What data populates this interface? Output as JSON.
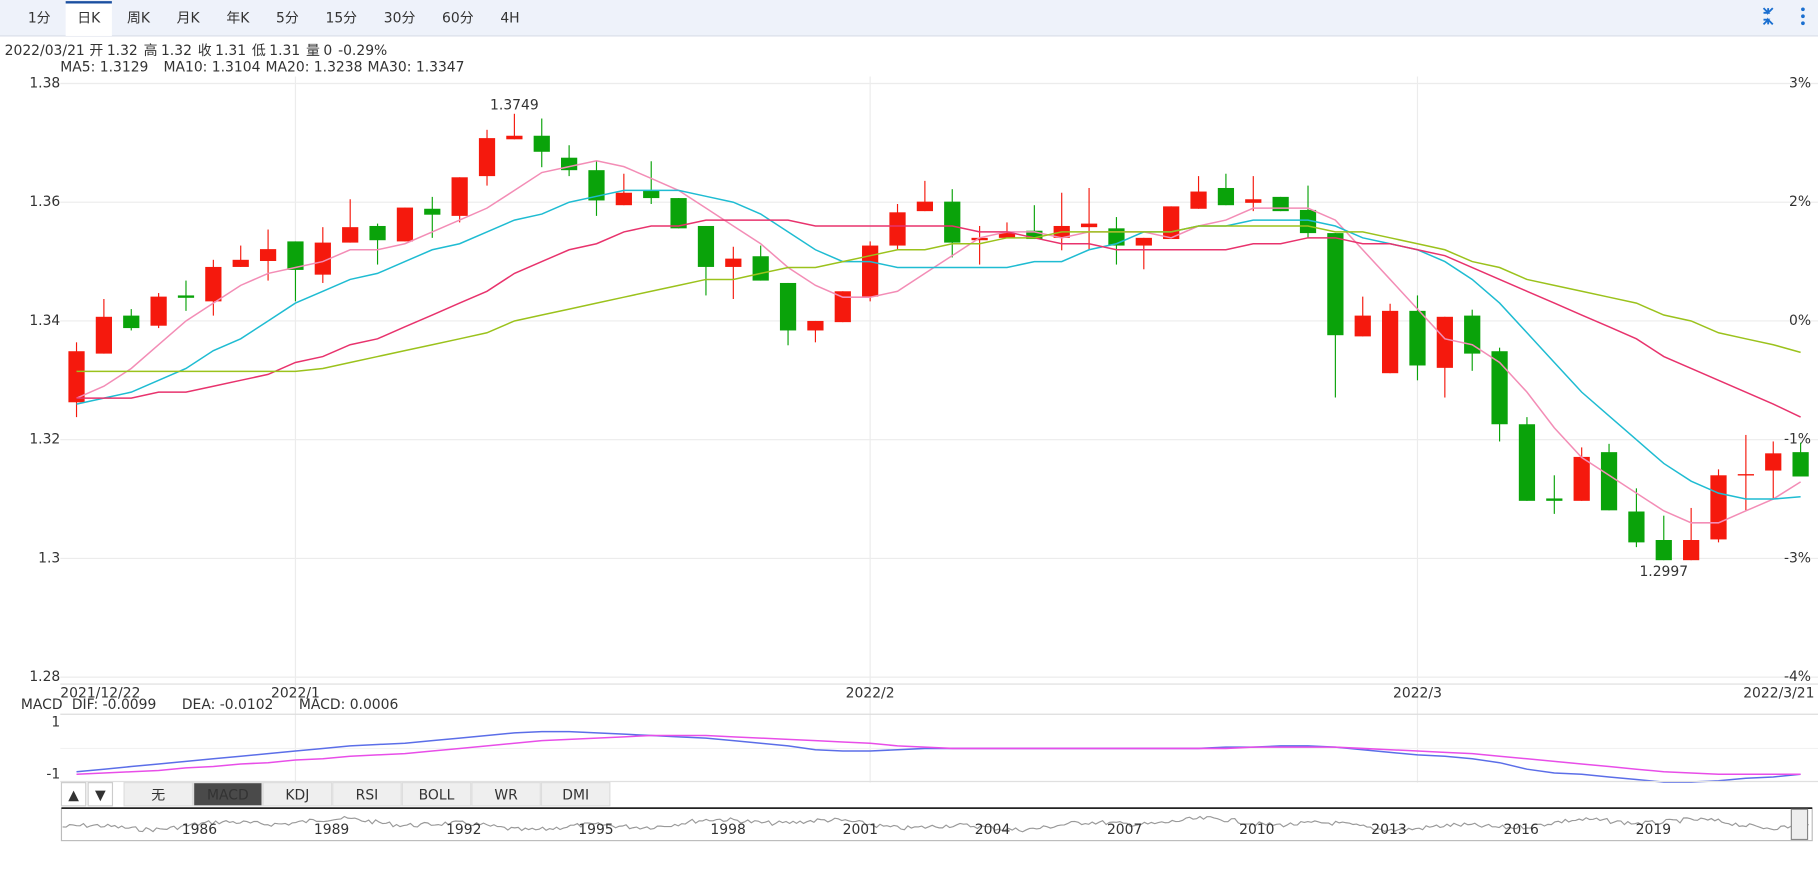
{
  "toolbar": {
    "tabs": [
      "1分",
      "日K",
      "周K",
      "月K",
      "年K",
      "5分",
      "15分",
      "30分",
      "60分",
      "4H"
    ],
    "selected": 1
  },
  "info": {
    "date": "2022/03/21",
    "fields": [
      {
        "label": "开",
        "value": "1.32",
        "color": "#f5190d"
      },
      {
        "label": "高",
        "value": "1.32",
        "color": "#f5190d"
      },
      {
        "label": "收",
        "value": "1.31",
        "color": "#0aa30a"
      },
      {
        "label": "低",
        "value": "1.31",
        "color": "#0aa30a"
      },
      {
        "label": "量",
        "value": "0",
        "color": "#333333"
      }
    ],
    "change": "-0.29%",
    "change_color": "#0aa30a"
  },
  "chart_data": [
    {
      "type": "candlestick",
      "up_color": "#f5190d",
      "down_color": "#0aa30a",
      "grid": true,
      "categories": [
        "2021/12/22",
        null,
        null,
        null,
        null,
        null,
        null,
        null,
        "2022/1",
        null,
        null,
        null,
        null,
        null,
        null,
        null,
        null,
        null,
        null,
        null,
        null,
        null,
        null,
        null,
        null,
        null,
        null,
        null,
        null,
        "2022/2",
        null,
        null,
        null,
        null,
        null,
        null,
        null,
        null,
        null,
        null,
        null,
        null,
        null,
        null,
        null,
        null,
        null,
        null,
        null,
        "2022/3",
        null,
        null,
        null,
        null,
        null,
        null,
        null,
        null,
        null,
        null,
        null,
        null,
        null,
        "2022/3/21"
      ],
      "open": [
        1.3263,
        1.3345,
        1.3409,
        1.3392,
        1.3443,
        1.3433,
        1.3491,
        1.3501,
        1.3534,
        1.3478,
        1.3532,
        1.356,
        1.3534,
        1.3589,
        1.3577,
        1.3644,
        1.3706,
        1.3712,
        1.3675,
        1.3654,
        1.3595,
        1.362,
        1.3607,
        1.356,
        1.3491,
        1.3509,
        1.3464,
        1.3384,
        1.3398,
        1.3441,
        1.3527,
        1.3585,
        1.3601,
        1.3536,
        1.354,
        1.3552,
        1.354,
        1.3558,
        1.3556,
        1.3527,
        1.3538,
        1.3589,
        1.3624,
        1.3599,
        1.3609,
        1.3587,
        1.3548,
        1.3374,
        1.3312,
        1.3417,
        1.3321,
        1.3409,
        1.3349,
        1.3226,
        1.3101,
        1.3097,
        1.3179,
        1.3079,
        1.3031,
        1.2997,
        1.3032,
        1.314,
        1.3148,
        1.3179
      ],
      "high": [
        1.3364,
        1.3437,
        1.342,
        1.3447,
        1.3468,
        1.3503,
        1.3527,
        1.3554,
        1.3534,
        1.3558,
        1.3605,
        1.3564,
        1.3591,
        1.3609,
        1.3642,
        1.3722,
        1.3749,
        1.3741,
        1.3696,
        1.3669,
        1.3648,
        1.3669,
        1.3607,
        1.356,
        1.3525,
        1.3527,
        1.3464,
        1.34,
        1.345,
        1.3534,
        1.3597,
        1.3636,
        1.3622,
        1.356,
        1.3566,
        1.3595,
        1.3616,
        1.3624,
        1.3575,
        1.354,
        1.3593,
        1.3644,
        1.3648,
        1.3644,
        1.3609,
        1.3628,
        1.3548,
        1.3441,
        1.3429,
        1.3443,
        1.3407,
        1.3419,
        1.3355,
        1.3238,
        1.314,
        1.3187,
        1.3193,
        1.3118,
        1.3072,
        1.3085,
        1.315,
        1.3208,
        1.3197,
        1.3195
      ],
      "low": [
        1.3238,
        1.3345,
        1.3384,
        1.3388,
        1.3417,
        1.3409,
        1.3491,
        1.3468,
        1.3433,
        1.3464,
        1.3532,
        1.3495,
        1.3534,
        1.354,
        1.3566,
        1.3628,
        1.3706,
        1.3659,
        1.3644,
        1.3577,
        1.3595,
        1.3597,
        1.3556,
        1.3443,
        1.3437,
        1.3468,
        1.3359,
        1.3364,
        1.3398,
        1.3433,
        1.3519,
        1.3585,
        1.3507,
        1.3495,
        1.354,
        1.3538,
        1.3519,
        1.3519,
        1.3495,
        1.3487,
        1.3538,
        1.3589,
        1.3595,
        1.3585,
        1.3585,
        1.354,
        1.3271,
        1.3374,
        1.3312,
        1.33,
        1.3271,
        1.3316,
        1.3197,
        1.3097,
        1.3075,
        1.3097,
        1.3081,
        1.3019,
        1.2997,
        1.2997,
        1.3027,
        1.3081,
        1.3101,
        1.3138
      ],
      "close": [
        1.3349,
        1.3407,
        1.3388,
        1.3441,
        1.3439,
        1.3491,
        1.3503,
        1.3521,
        1.3486,
        1.3532,
        1.3558,
        1.3536,
        1.3591,
        1.3579,
        1.3642,
        1.3708,
        1.3712,
        1.3685,
        1.3654,
        1.3603,
        1.3616,
        1.3607,
        1.3556,
        1.3491,
        1.3505,
        1.3468,
        1.3384,
        1.34,
        1.345,
        1.3527,
        1.3583,
        1.3601,
        1.3532,
        1.354,
        1.3548,
        1.3538,
        1.356,
        1.3564,
        1.3527,
        1.354,
        1.3593,
        1.3618,
        1.3595,
        1.3605,
        1.3585,
        1.3548,
        1.3376,
        1.3409,
        1.3417,
        1.3325,
        1.3407,
        1.3345,
        1.3226,
        1.3097,
        1.3097,
        1.3171,
        1.3081,
        1.3027,
        1.2997,
        1.3031,
        1.314,
        1.3142,
        1.3177,
        1.3138
      ],
      "series": [
        {
          "name": "MA5: 1.3129",
          "color": "#f38db6",
          "values": [
            1.327,
            1.329,
            1.332,
            1.336,
            1.34,
            1.343,
            1.346,
            1.348,
            1.349,
            1.35,
            1.352,
            1.352,
            1.353,
            1.355,
            1.357,
            1.359,
            1.362,
            1.365,
            1.366,
            1.367,
            1.366,
            1.364,
            1.362,
            1.359,
            1.356,
            1.353,
            1.349,
            1.346,
            1.344,
            1.344,
            1.345,
            1.348,
            1.351,
            1.354,
            1.355,
            1.355,
            1.354,
            1.355,
            1.355,
            1.355,
            1.354,
            1.356,
            1.357,
            1.359,
            1.359,
            1.359,
            1.357,
            1.352,
            1.347,
            1.342,
            1.337,
            1.336,
            1.333,
            1.328,
            1.322,
            1.317,
            1.314,
            1.311,
            1.308,
            1.306,
            1.306,
            1.308,
            1.31,
            1.3129
          ]
        },
        {
          "name": "MA10: 1.3104",
          "color": "#1fbcd2",
          "values": [
            1.326,
            1.327,
            1.328,
            1.33,
            1.332,
            1.335,
            1.337,
            1.34,
            1.343,
            1.345,
            1.347,
            1.348,
            1.35,
            1.352,
            1.353,
            1.355,
            1.357,
            1.358,
            1.36,
            1.361,
            1.362,
            1.362,
            1.362,
            1.361,
            1.36,
            1.358,
            1.355,
            1.352,
            1.35,
            1.35,
            1.349,
            1.349,
            1.349,
            1.349,
            1.349,
            1.35,
            1.35,
            1.352,
            1.353,
            1.355,
            1.355,
            1.356,
            1.356,
            1.357,
            1.357,
            1.357,
            1.356,
            1.354,
            1.353,
            1.352,
            1.35,
            1.347,
            1.343,
            1.338,
            1.333,
            1.328,
            1.324,
            1.32,
            1.316,
            1.313,
            1.311,
            1.31,
            1.31,
            1.3104
          ]
        },
        {
          "name": "MA20: 1.3238",
          "color": "#e8336d",
          "values": [
            1.327,
            1.327,
            1.327,
            1.328,
            1.328,
            1.329,
            1.33,
            1.331,
            1.333,
            1.334,
            1.336,
            1.337,
            1.339,
            1.341,
            1.343,
            1.345,
            1.348,
            1.35,
            1.352,
            1.353,
            1.355,
            1.356,
            1.356,
            1.357,
            1.357,
            1.357,
            1.357,
            1.356,
            1.356,
            1.356,
            1.356,
            1.356,
            1.356,
            1.355,
            1.355,
            1.354,
            1.353,
            1.353,
            1.352,
            1.352,
            1.352,
            1.352,
            1.352,
            1.353,
            1.353,
            1.354,
            1.354,
            1.353,
            1.353,
            1.352,
            1.351,
            1.349,
            1.347,
            1.345,
            1.343,
            1.341,
            1.339,
            1.337,
            1.334,
            1.332,
            1.33,
            1.328,
            1.326,
            1.3238
          ]
        },
        {
          "name": "MA30: 1.3347",
          "color": "#9bc21c",
          "values": [
            1.3315,
            1.3315,
            1.3315,
            1.3315,
            1.3315,
            1.3315,
            1.3315,
            1.3315,
            1.3315,
            1.332,
            1.333,
            1.334,
            1.335,
            1.336,
            1.337,
            1.338,
            1.34,
            1.341,
            1.342,
            1.343,
            1.344,
            1.345,
            1.346,
            1.347,
            1.347,
            1.348,
            1.349,
            1.349,
            1.35,
            1.351,
            1.352,
            1.352,
            1.353,
            1.353,
            1.354,
            1.354,
            1.355,
            1.355,
            1.355,
            1.355,
            1.355,
            1.356,
            1.356,
            1.356,
            1.356,
            1.356,
            1.355,
            1.355,
            1.354,
            1.353,
            1.352,
            1.35,
            1.349,
            1.347,
            1.346,
            1.345,
            1.344,
            1.343,
            1.341,
            1.34,
            1.338,
            1.337,
            1.336,
            1.3347
          ]
        }
      ],
      "ylim": [
        1.28,
        1.38
      ],
      "yticks": [
        1.28,
        1.3,
        1.32,
        1.34,
        1.36,
        1.38
      ],
      "right_tick_labels": [
        "-4%",
        "-3%",
        "-1%",
        "0%",
        "2%",
        "3%"
      ]
    },
    {
      "type": "line",
      "title": "MACD",
      "ylim": [
        -1.5,
        1.5
      ],
      "yticks": [
        1,
        -1
      ],
      "series": [
        {
          "name": "DIF: -0.0099",
          "color": "#5b6ee8",
          "values": [
            -0.9,
            -0.8,
            -0.7,
            -0.6,
            -0.5,
            -0.4,
            -0.3,
            -0.2,
            -0.1,
            0,
            0.1,
            0.15,
            0.2,
            0.3,
            0.4,
            0.5,
            0.6,
            0.65,
            0.65,
            0.6,
            0.55,
            0.5,
            0.45,
            0.4,
            0.3,
            0.2,
            0.1,
            -0.05,
            -0.1,
            -0.1,
            -0.05,
            0,
            0,
            0,
            0,
            0,
            0,
            0,
            0,
            0,
            0,
            0,
            0.05,
            0.05,
            0.1,
            0.1,
            0.05,
            -0.05,
            -0.15,
            -0.25,
            -0.3,
            -0.4,
            -0.55,
            -0.8,
            -0.95,
            -1,
            -1.1,
            -1.2,
            -1.3,
            -1.3,
            -1.25,
            -1.15,
            -1.1,
            -1
          ]
        },
        {
          "name": "DEA: -0.0102",
          "color": "#e84ee8",
          "values": [
            -1,
            -0.95,
            -0.9,
            -0.85,
            -0.75,
            -0.7,
            -0.6,
            -0.55,
            -0.45,
            -0.4,
            -0.3,
            -0.25,
            -0.2,
            -0.1,
            0,
            0.1,
            0.2,
            0.3,
            0.35,
            0.4,
            0.45,
            0.5,
            0.5,
            0.5,
            0.45,
            0.4,
            0.35,
            0.3,
            0.25,
            0.2,
            0.1,
            0.05,
            0,
            0,
            0,
            0,
            0,
            0,
            0,
            0,
            0,
            0,
            0,
            0.05,
            0.05,
            0.05,
            0.05,
            0,
            -0.05,
            -0.1,
            -0.15,
            -0.2,
            -0.3,
            -0.4,
            -0.5,
            -0.6,
            -0.7,
            -0.8,
            -0.9,
            -0.95,
            -1,
            -1,
            -1,
            -1
          ]
        }
      ],
      "extra_legend": {
        "text": "MACD: 0.0006",
        "color": "#d23a3a"
      }
    }
  ],
  "indicator_tabs": {
    "arrows": [
      "▲",
      "▼"
    ],
    "tabs": [
      "无",
      "MACD",
      "KDJ",
      "RSI",
      "BOLL",
      "WR",
      "DMI"
    ],
    "selected": 1
  },
  "navigator": {
    "years": [
      "1986",
      "1989",
      "1992",
      "1995",
      "1998",
      "2001",
      "2004",
      "2007",
      "2010",
      "2013",
      "2016",
      "2019"
    ]
  }
}
